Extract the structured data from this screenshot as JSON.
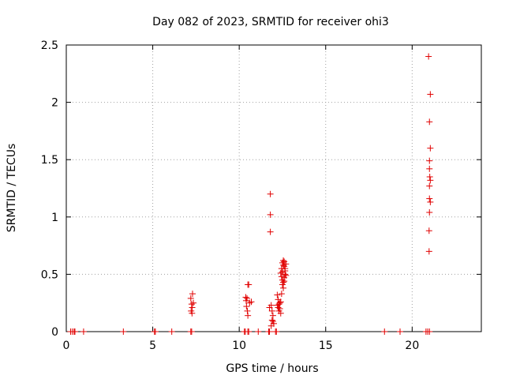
{
  "chart_data": {
    "type": "scatter",
    "title": "Day 082 of 2023, SRMTID for receiver ohi3",
    "xlabel": "GPS time / hours",
    "ylabel": "SRMTID / TECUs",
    "xlim": [
      0,
      24
    ],
    "ylim": [
      0,
      2.5
    ],
    "xticks": [
      0,
      5,
      10,
      15,
      20
    ],
    "xtick_labels": [
      "0",
      "5",
      "10",
      "15",
      "20"
    ],
    "yticks": [
      0,
      0.5,
      1,
      1.5,
      2,
      2.5
    ],
    "ytick_labels": [
      "0",
      "0.5",
      "1",
      "1.5",
      "2",
      "2.5"
    ],
    "grid": true,
    "marker": "+",
    "color": "#e00000",
    "series": [
      {
        "name": "SRMTID",
        "points": [
          [
            0.25,
            0
          ],
          [
            0.35,
            0
          ],
          [
            0.45,
            0
          ],
          [
            0.5,
            0
          ],
          [
            1.0,
            0
          ],
          [
            3.3,
            0
          ],
          [
            5.1,
            0
          ],
          [
            5.15,
            0
          ],
          [
            6.1,
            0
          ],
          [
            7.2,
            0
          ],
          [
            7.25,
            0
          ],
          [
            7.2,
            0.29
          ],
          [
            7.25,
            0.24
          ],
          [
            7.3,
            0.33
          ],
          [
            7.22,
            0.18
          ],
          [
            7.28,
            0.21
          ],
          [
            7.35,
            0.25
          ],
          [
            7.27,
            0.16
          ],
          [
            10.3,
            0
          ],
          [
            10.35,
            0
          ],
          [
            10.5,
            0
          ],
          [
            10.55,
            0
          ],
          [
            11.1,
            0
          ],
          [
            11.7,
            0
          ],
          [
            11.75,
            0
          ],
          [
            12.1,
            0
          ],
          [
            12.15,
            0
          ],
          [
            18.4,
            0
          ],
          [
            19.3,
            0
          ],
          [
            20.8,
            0
          ],
          [
            20.9,
            0
          ],
          [
            21.0,
            0
          ],
          [
            10.4,
            0.27
          ],
          [
            10.45,
            0.29
          ],
          [
            10.5,
            0.41
          ],
          [
            10.55,
            0.41
          ],
          [
            10.42,
            0.22
          ],
          [
            10.47,
            0.18
          ],
          [
            10.5,
            0.14
          ],
          [
            10.6,
            0.25
          ],
          [
            10.7,
            0.26
          ],
          [
            10.38,
            0.3
          ],
          [
            11.8,
            1.2
          ],
          [
            11.8,
            1.02
          ],
          [
            11.8,
            0.87
          ],
          [
            11.85,
            0.23
          ],
          [
            11.9,
            0.18
          ],
          [
            11.95,
            0.14
          ],
          [
            11.9,
            0.1
          ],
          [
            12.0,
            0.07
          ],
          [
            11.85,
            0.05
          ],
          [
            11.95,
            0.09
          ],
          [
            11.75,
            0.21
          ],
          [
            12.2,
            0.32
          ],
          [
            12.25,
            0.28
          ],
          [
            12.3,
            0.24
          ],
          [
            12.35,
            0.2
          ],
          [
            12.4,
            0.16
          ],
          [
            12.3,
            0.18
          ],
          [
            12.2,
            0.23
          ],
          [
            12.4,
            0.26
          ],
          [
            12.45,
            0.33
          ],
          [
            12.25,
            0.21
          ],
          [
            12.35,
            0.25
          ],
          [
            12.45,
            0.55
          ],
          [
            12.5,
            0.6
          ],
          [
            12.55,
            0.62
          ],
          [
            12.6,
            0.57
          ],
          [
            12.65,
            0.5
          ],
          [
            12.5,
            0.45
          ],
          [
            12.55,
            0.43
          ],
          [
            12.6,
            0.47
          ],
          [
            12.65,
            0.53
          ],
          [
            12.7,
            0.59
          ],
          [
            12.5,
            0.52
          ],
          [
            12.45,
            0.48
          ],
          [
            12.55,
            0.58
          ],
          [
            12.6,
            0.61
          ],
          [
            12.65,
            0.55
          ],
          [
            12.7,
            0.49
          ],
          [
            12.5,
            0.41
          ],
          [
            12.4,
            0.51
          ],
          [
            12.6,
            0.44
          ],
          [
            12.55,
            0.38
          ],
          [
            20.95,
            2.4
          ],
          [
            21.05,
            2.07
          ],
          [
            21.0,
            1.83
          ],
          [
            21.05,
            1.6
          ],
          [
            21.0,
            1.49
          ],
          [
            21.0,
            1.42
          ],
          [
            21.02,
            1.35
          ],
          [
            21.05,
            1.32
          ],
          [
            21.0,
            1.27
          ],
          [
            21.0,
            1.16
          ],
          [
            21.05,
            1.13
          ],
          [
            21.0,
            1.04
          ],
          [
            20.98,
            0.88
          ],
          [
            20.98,
            0.7
          ]
        ]
      }
    ]
  }
}
